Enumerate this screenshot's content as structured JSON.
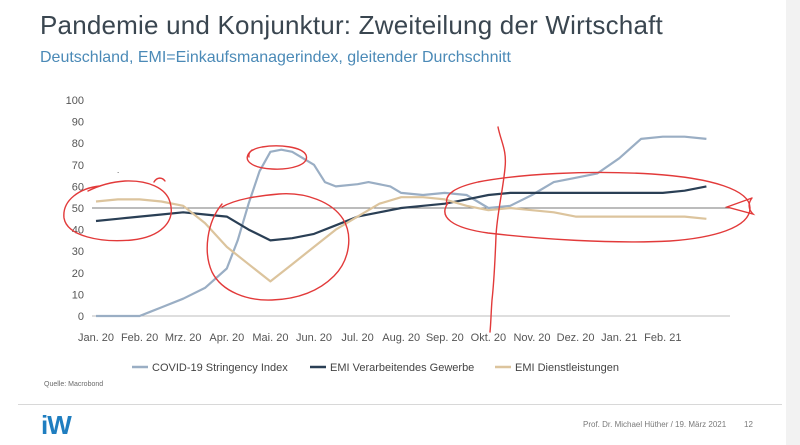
{
  "slide": {
    "title": "Pandemie und Konjunktur: Zweiteilung der Wirtschaft",
    "subtitle": "Deutschland, EMI=Einkaufsmanagerindex, gleitender Durchschnitt",
    "source": "Quelle: Macrobond",
    "logo": "iW",
    "footer": "Prof. Dr. Michael Hüther / 19. März 2021",
    "page_number": "12",
    "colors": {
      "title": "#3a4650",
      "subtitle": "#4b8ab7",
      "logo": "#1f7ec0",
      "annotation": "#e23a3a"
    }
  },
  "chart_data": {
    "type": "line",
    "title": "",
    "xlabel": "",
    "ylabel": "",
    "ylim": [
      0,
      100
    ],
    "yticks": [
      0,
      10,
      20,
      30,
      40,
      50,
      60,
      70,
      80,
      90,
      100
    ],
    "xticks": [
      "Jan. 20",
      "Feb. 20",
      "Mrz. 20",
      "Apr. 20",
      "Mai. 20",
      "Jun. 20",
      "Jul. 20",
      "Aug. 20",
      "Sep. 20",
      "Okt. 20",
      "Nov. 20",
      "Dez. 20",
      "Jan. 21",
      "Feb. 21"
    ],
    "grid": false,
    "reference_line": 50,
    "legend_position": "bottom",
    "series": [
      {
        "name": "COVID-19 Stringency Index",
        "color": "#9aaec4",
        "points": [
          [
            0,
            0
          ],
          [
            0.5,
            0
          ],
          [
            1,
            0
          ],
          [
            1.25,
            2
          ],
          [
            1.5,
            4
          ],
          [
            2,
            8
          ],
          [
            2.5,
            13
          ],
          [
            3,
            22
          ],
          [
            3.25,
            35
          ],
          [
            3.5,
            52
          ],
          [
            3.75,
            67
          ],
          [
            4,
            76
          ],
          [
            4.25,
            77
          ],
          [
            4.5,
            76
          ],
          [
            5,
            70
          ],
          [
            5.25,
            62
          ],
          [
            5.5,
            60
          ],
          [
            6,
            61
          ],
          [
            6.25,
            62
          ],
          [
            6.75,
            60
          ],
          [
            7,
            57
          ],
          [
            7.5,
            56
          ],
          [
            8,
            57
          ],
          [
            8.5,
            56
          ],
          [
            9,
            50
          ],
          [
            9.5,
            51
          ],
          [
            10,
            56
          ],
          [
            10.5,
            62
          ],
          [
            11,
            64
          ],
          [
            11.5,
            66
          ],
          [
            12,
            73
          ],
          [
            12.5,
            82
          ],
          [
            13,
            83
          ],
          [
            13.5,
            83
          ],
          [
            14,
            82
          ]
        ]
      },
      {
        "name": "EMI Verarbeitendes Gewerbe",
        "color": "#2a3f55",
        "points": [
          [
            0,
            44
          ],
          [
            0.5,
            45
          ],
          [
            1,
            46
          ],
          [
            1.5,
            47
          ],
          [
            2,
            48
          ],
          [
            2.5,
            47
          ],
          [
            3,
            46
          ],
          [
            3.5,
            40
          ],
          [
            4,
            35
          ],
          [
            4.5,
            36
          ],
          [
            5,
            38
          ],
          [
            5.5,
            42
          ],
          [
            6,
            46
          ],
          [
            6.5,
            48
          ],
          [
            7,
            50
          ],
          [
            7.5,
            51
          ],
          [
            8,
            52
          ],
          [
            8.5,
            54
          ],
          [
            9,
            56
          ],
          [
            9.5,
            57
          ],
          [
            10,
            57
          ],
          [
            10.5,
            57
          ],
          [
            11,
            57
          ],
          [
            11.5,
            57
          ],
          [
            12,
            57
          ],
          [
            12.5,
            57
          ],
          [
            13,
            57
          ],
          [
            13.5,
            58
          ],
          [
            14,
            60
          ]
        ]
      },
      {
        "name": "EMI Dienstleistungen",
        "color": "#dcc49d",
        "points": [
          [
            0,
            53
          ],
          [
            0.5,
            54
          ],
          [
            1,
            54
          ],
          [
            1.5,
            53
          ],
          [
            2,
            51
          ],
          [
            2.5,
            43
          ],
          [
            3,
            32
          ],
          [
            3.5,
            24
          ],
          [
            4,
            16
          ],
          [
            4.5,
            24
          ],
          [
            5,
            32
          ],
          [
            5.5,
            40
          ],
          [
            6,
            46
          ],
          [
            6.5,
            52
          ],
          [
            7,
            55
          ],
          [
            7.5,
            55
          ],
          [
            8,
            54
          ],
          [
            8.5,
            51
          ],
          [
            9,
            49
          ],
          [
            9.5,
            50
          ],
          [
            10,
            49
          ],
          [
            10.5,
            48
          ],
          [
            11,
            46
          ],
          [
            11.5,
            46
          ],
          [
            12,
            46
          ],
          [
            12.5,
            46
          ],
          [
            13,
            46
          ],
          [
            13.5,
            46
          ],
          [
            14,
            45
          ]
        ]
      }
    ]
  }
}
